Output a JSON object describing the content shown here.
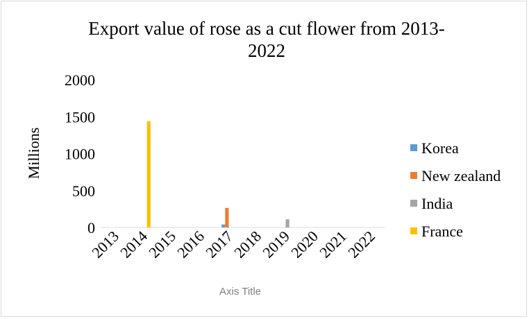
{
  "chart_data": {
    "type": "bar",
    "title_line1": "Export value of rose as a cut flower from 2013-",
    "title_line2": "2022",
    "xlabel": "Axis Title",
    "ylabel": "Millions",
    "ylim": [
      0,
      2000
    ],
    "yticks": [
      0,
      500,
      1000,
      1500,
      2000
    ],
    "categories": [
      "2013",
      "2014",
      "2015",
      "2016",
      "2017",
      "2018",
      "2019",
      "2020",
      "2021",
      "2022"
    ],
    "series": [
      {
        "name": "Korea",
        "color": "#5b9bd5",
        "values": [
          0,
          0,
          0,
          0,
          40,
          0,
          0,
          0,
          0,
          0
        ]
      },
      {
        "name": "New zealand",
        "color": "#ed7d31",
        "values": [
          0,
          0,
          0,
          0,
          265,
          0,
          0,
          0,
          0,
          0
        ]
      },
      {
        "name": "India",
        "color": "#a5a5a5",
        "values": [
          0,
          0,
          0,
          0,
          0,
          0,
          110,
          0,
          0,
          0
        ]
      },
      {
        "name": "France",
        "color": "#ffc000",
        "values": [
          0,
          1440,
          0,
          0,
          0,
          0,
          0,
          0,
          0,
          0
        ]
      }
    ],
    "grid": false,
    "legend_position": "right"
  }
}
